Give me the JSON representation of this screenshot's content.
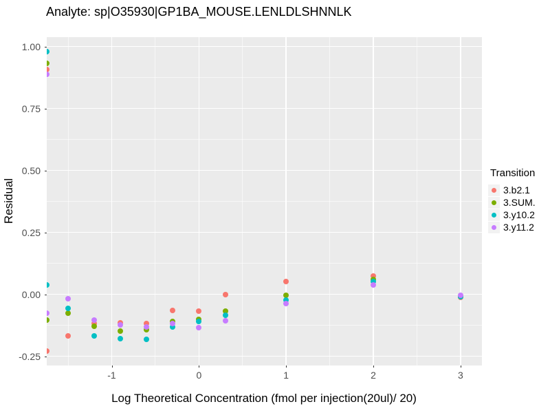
{
  "page": {
    "title": "Analyte: sp|O35930|GP1BA_MOUSE.LENLDLSHNNLK"
  },
  "axes": {
    "x_title": "Log Theoretical Concentration (fmol per injection(20ul)/ 20)",
    "y_title": "Residual"
  },
  "legend": {
    "title": "Transition",
    "items": [
      {
        "label": "3.b2.1",
        "color": "#F8766D"
      },
      {
        "label": "3.SUM.",
        "color": "#7CAE00"
      },
      {
        "label": "3.y10.2",
        "color": "#00BFC4"
      },
      {
        "label": "3.y11.2",
        "color": "#C77CFF"
      }
    ]
  },
  "colors": {
    "panel_background": "#EBEBEB",
    "gridline": "#FFFFFF",
    "tick_label": "#4D4D4D",
    "legend_key_background": "#F2F2F2"
  },
  "chart_data": {
    "type": "scatter",
    "title": "Analyte: sp|O35930|GP1BA_MOUSE.LENLDLSHNNLK",
    "xlabel": "Log Theoretical Concentration (fmol per injection(20ul)/ 20)",
    "ylabel": "Residual",
    "xlim": [
      -1.745,
      3.245
    ],
    "ylim": [
      -0.2875,
      1.0375
    ],
    "grid": true,
    "legend_position": "right",
    "legend_title": "Transition",
    "x_ticks": [
      {
        "value": -1,
        "label": "-1"
      },
      {
        "value": 0,
        "label": "0"
      },
      {
        "value": 1,
        "label": "1"
      },
      {
        "value": 2,
        "label": "2"
      },
      {
        "value": 3,
        "label": "3"
      }
    ],
    "y_ticks": [
      {
        "value": 1.0,
        "label": "1.00"
      },
      {
        "value": 0.75,
        "label": "0.75"
      },
      {
        "value": 0.5,
        "label": "0.50"
      },
      {
        "value": 0.25,
        "label": "0.25"
      },
      {
        "value": 0.0,
        "label": "0.00"
      },
      {
        "value": -0.25,
        "label": "-0.25"
      }
    ],
    "x_minor_ticks": [
      -1.5,
      -0.5,
      0.5,
      1.5,
      2.5
    ],
    "y_minor_ticks": [
      0.875,
      0.625,
      0.375,
      0.125,
      -0.125
    ],
    "series": [
      {
        "name": "3.b2.1",
        "color": "#F8766D",
        "points": [
          [
            -1.745,
            0.908
          ],
          [
            -1.745,
            -0.228
          ],
          [
            -1.502,
            -0.168
          ],
          [
            -1.204,
            -0.118
          ],
          [
            -0.903,
            -0.115
          ],
          [
            -0.602,
            -0.117
          ],
          [
            -0.301,
            -0.064
          ],
          [
            0.0,
            -0.068
          ],
          [
            0.301,
            -0.001
          ],
          [
            1.0,
            0.051
          ],
          [
            2.0,
            0.073
          ],
          [
            3.0,
            -0.013
          ]
        ]
      },
      {
        "name": "3.SUM.",
        "color": "#7CAE00",
        "points": [
          [
            -1.745,
            0.932
          ],
          [
            -1.745,
            -0.104
          ],
          [
            -1.502,
            -0.076
          ],
          [
            -1.204,
            -0.129
          ],
          [
            -0.903,
            -0.148
          ],
          [
            -0.602,
            -0.142
          ],
          [
            -0.301,
            -0.111
          ],
          [
            0.0,
            -0.101
          ],
          [
            0.301,
            -0.068
          ],
          [
            1.0,
            -0.003
          ],
          [
            2.0,
            0.06
          ],
          [
            3.0,
            -0.009
          ]
        ]
      },
      {
        "name": "3.y10.2",
        "color": "#00BFC4",
        "points": [
          [
            -1.745,
            0.979
          ],
          [
            -1.745,
            0.037
          ],
          [
            -1.502,
            -0.057
          ],
          [
            -1.204,
            -0.168
          ],
          [
            -0.903,
            -0.179
          ],
          [
            -0.602,
            -0.181
          ],
          [
            -0.301,
            -0.131
          ],
          [
            0.0,
            -0.11
          ],
          [
            0.301,
            -0.085
          ],
          [
            1.0,
            -0.023
          ],
          [
            2.0,
            0.051
          ],
          [
            3.0,
            -0.009
          ]
        ]
      },
      {
        "name": "3.y11.2",
        "color": "#C77CFF",
        "points": [
          [
            -1.745,
            0.887
          ],
          [
            -1.745,
            -0.076
          ],
          [
            -1.502,
            -0.018
          ],
          [
            -1.204,
            -0.104
          ],
          [
            -0.903,
            -0.124
          ],
          [
            -0.602,
            -0.133
          ],
          [
            -0.301,
            -0.117
          ],
          [
            0.0,
            -0.135
          ],
          [
            0.301,
            -0.107
          ],
          [
            1.0,
            -0.038
          ],
          [
            2.0,
            0.037
          ],
          [
            3.0,
            -0.005
          ]
        ]
      }
    ]
  }
}
